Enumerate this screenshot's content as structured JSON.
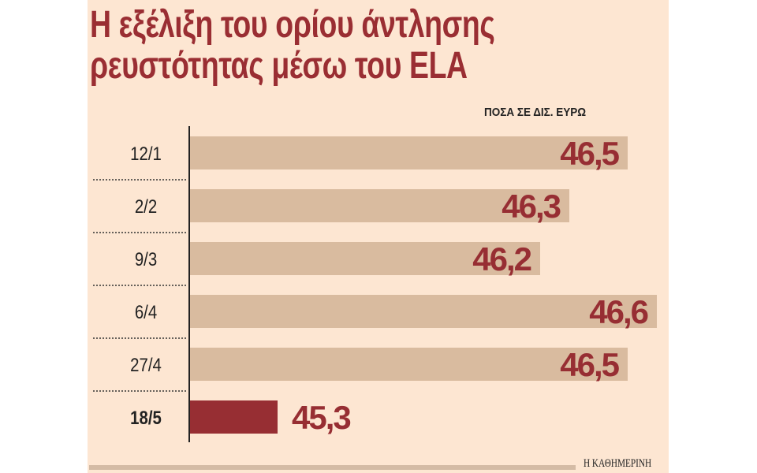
{
  "title_lines": [
    "Η εξέλιξη του ορίου άντλησης",
    "ρευστότητας μέσω του ELA"
  ],
  "unit_label": "ΠΟΣΑ ΣΕ ΔΙΣ. ΕΥΡΩ",
  "credit": "Η ΚΑΘΗΜΕΡΙΝΗ",
  "colors": {
    "bar": "#d9bb9f",
    "highlight": "#972e33",
    "value_text": "#972e33",
    "background": "#fde6d2"
  },
  "chart_data": {
    "type": "bar",
    "orientation": "horizontal",
    "title": "Η εξέλιξη του ορίου άντλησης ρευστότητας μέσω του ΕLA",
    "xlabel": "ΠΟΣΑ ΣΕ ΔΙΣ. ΕΥΡΩ",
    "categories": [
      "12/1",
      "2/2",
      "9/3",
      "6/4",
      "27/4",
      "18/5"
    ],
    "values": [
      46.5,
      46.3,
      46.2,
      46.6,
      46.5,
      45.3
    ],
    "value_labels": [
      "46,5",
      "46,3",
      "46,2",
      "46,6",
      "46,5",
      "45,3"
    ],
    "highlight_index": 5,
    "xlim": [
      45.0,
      46.6
    ]
  }
}
